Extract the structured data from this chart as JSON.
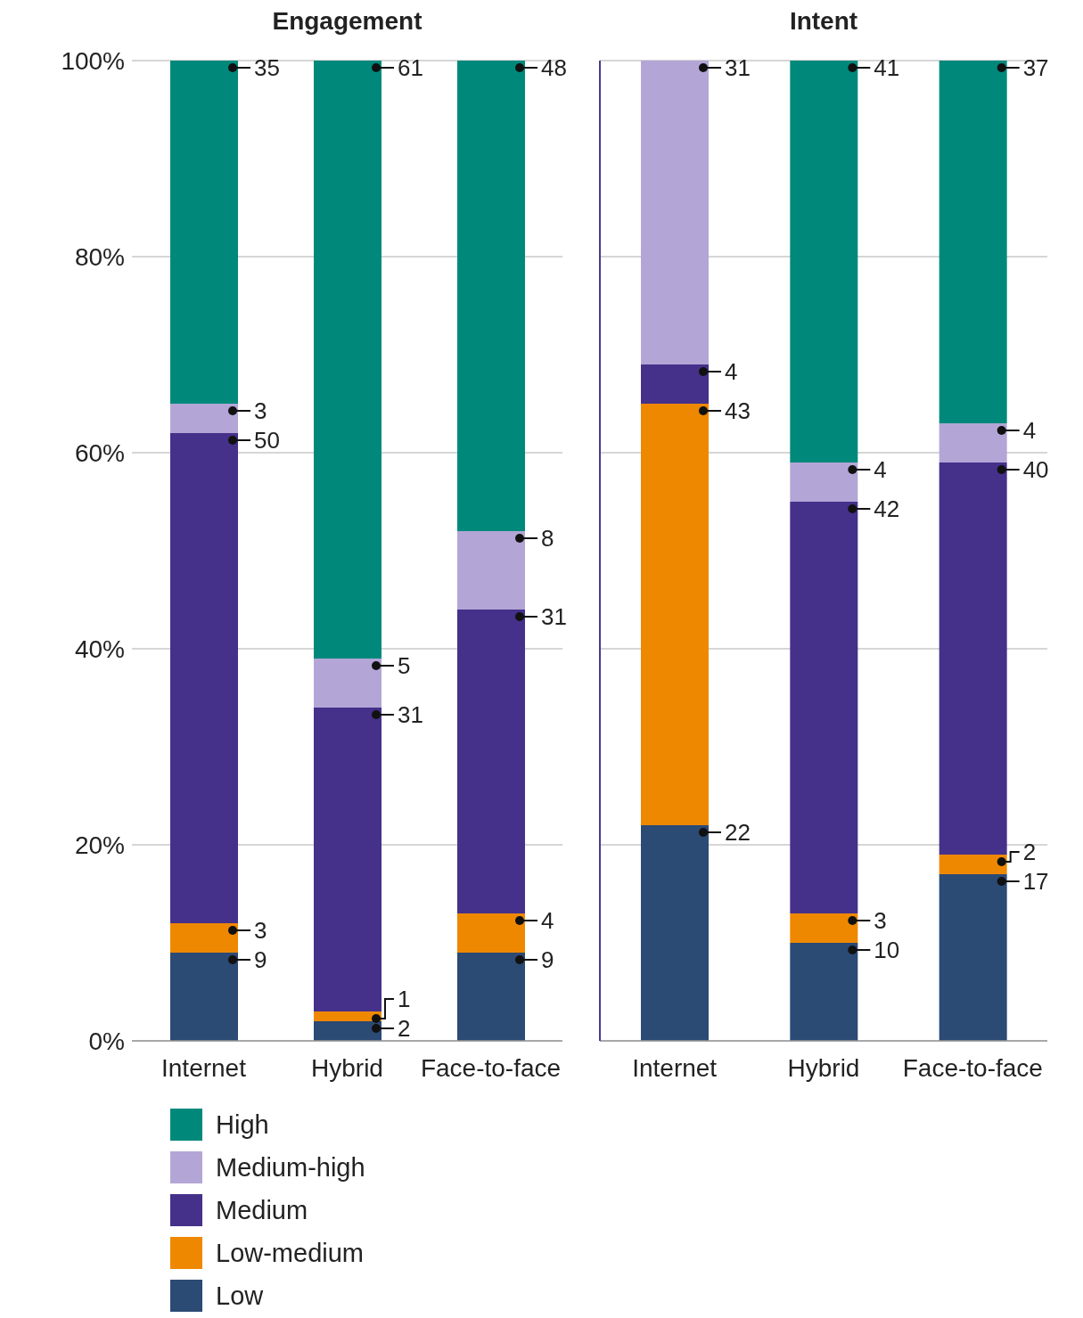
{
  "chart_data": [
    {
      "type": "bar",
      "title": "Engagement",
      "categories": [
        "Internet",
        "Hybrid",
        "Face-to-face"
      ],
      "stacked": true,
      "data_labels": true,
      "grid": "y",
      "legend": "bottom left",
      "ylim": [
        0,
        100
      ],
      "yticks": [
        {
          "value": 0,
          "label": "0%"
        },
        {
          "value": 20,
          "label": "20%"
        },
        {
          "value": 40,
          "label": "40%"
        },
        {
          "value": 60,
          "label": "60%"
        },
        {
          "value": 80,
          "label": "80%"
        },
        {
          "value": 100,
          "label": "100%"
        }
      ],
      "series": [
        {
          "name": "Low",
          "color": "#2b4a74",
          "values": [
            9,
            2,
            9
          ]
        },
        {
          "name": "Low-medium",
          "color": "#ee8800",
          "values": [
            3,
            1,
            4
          ]
        },
        {
          "name": "Medium",
          "color": "#45308a",
          "values": [
            50,
            31,
            31
          ]
        },
        {
          "name": "Medium-high",
          "color": "#b3a6d6",
          "values": [
            3,
            5,
            8
          ]
        },
        {
          "name": "High",
          "color": "#00897b",
          "values": [
            35,
            61,
            48
          ]
        }
      ]
    },
    {
      "type": "bar",
      "title": "Intent",
      "categories": [
        "Internet",
        "Hybrid",
        "Face-to-face"
      ],
      "stacked": true,
      "data_labels": true,
      "grid": "y",
      "tick_labels": "x",
      "ylim": [
        0,
        100
      ],
      "yticks": [
        0,
        20,
        40,
        60,
        80,
        100
      ],
      "series": [
        {
          "color": "#2b4a74",
          "values": [
            22,
            10,
            17
          ]
        },
        {
          "color": "#ee8800",
          "values": [
            43,
            3,
            2
          ]
        },
        {
          "color": "#45308a",
          "values": [
            4,
            42,
            40
          ]
        },
        {
          "color": "#b3a6d6",
          "values": [
            31,
            4,
            4
          ]
        },
        {
          "color": "#00897b",
          "values": [
            null,
            41,
            37
          ]
        }
      ]
    }
  ]
}
